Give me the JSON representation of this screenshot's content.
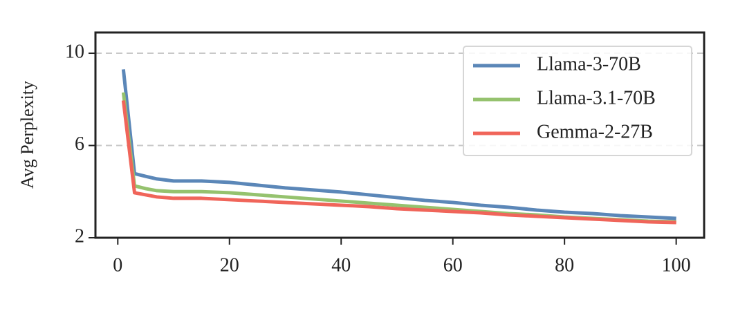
{
  "chart_data": {
    "type": "line",
    "ylabel": "Avg Perplexity",
    "x": [
      1,
      3,
      5,
      7,
      10,
      15,
      20,
      25,
      30,
      35,
      40,
      45,
      50,
      55,
      60,
      65,
      70,
      75,
      80,
      85,
      90,
      95,
      100
    ],
    "series": [
      {
        "name": "Llama-3-70B",
        "color": "#5b87b8",
        "values": [
          9.3,
          4.78,
          4.66,
          4.55,
          4.46,
          4.46,
          4.4,
          4.28,
          4.16,
          4.07,
          3.98,
          3.86,
          3.74,
          3.62,
          3.53,
          3.41,
          3.32,
          3.2,
          3.11,
          3.05,
          2.96,
          2.9,
          2.84
        ]
      },
      {
        "name": "Llama-3.1-70B",
        "color": "#95c26e",
        "values": [
          8.3,
          4.25,
          4.13,
          4.04,
          4.0,
          4.0,
          3.95,
          3.86,
          3.77,
          3.68,
          3.59,
          3.5,
          3.41,
          3.32,
          3.23,
          3.14,
          3.05,
          2.99,
          2.9,
          2.84,
          2.78,
          2.72,
          2.69
        ]
      },
      {
        "name": "Gemma-2-27B",
        "color": "#f0655a",
        "values": [
          7.95,
          3.95,
          3.86,
          3.77,
          3.71,
          3.71,
          3.65,
          3.59,
          3.53,
          3.47,
          3.41,
          3.35,
          3.26,
          3.2,
          3.14,
          3.08,
          2.99,
          2.93,
          2.87,
          2.81,
          2.75,
          2.69,
          2.66
        ]
      }
    ],
    "xlim": [
      -4,
      105
    ],
    "ylim": [
      2,
      10.9
    ],
    "xticks": [
      0,
      20,
      40,
      60,
      80,
      100
    ],
    "yticks": [
      2,
      6,
      10
    ],
    "grid": true,
    "legend": "upper right"
  }
}
